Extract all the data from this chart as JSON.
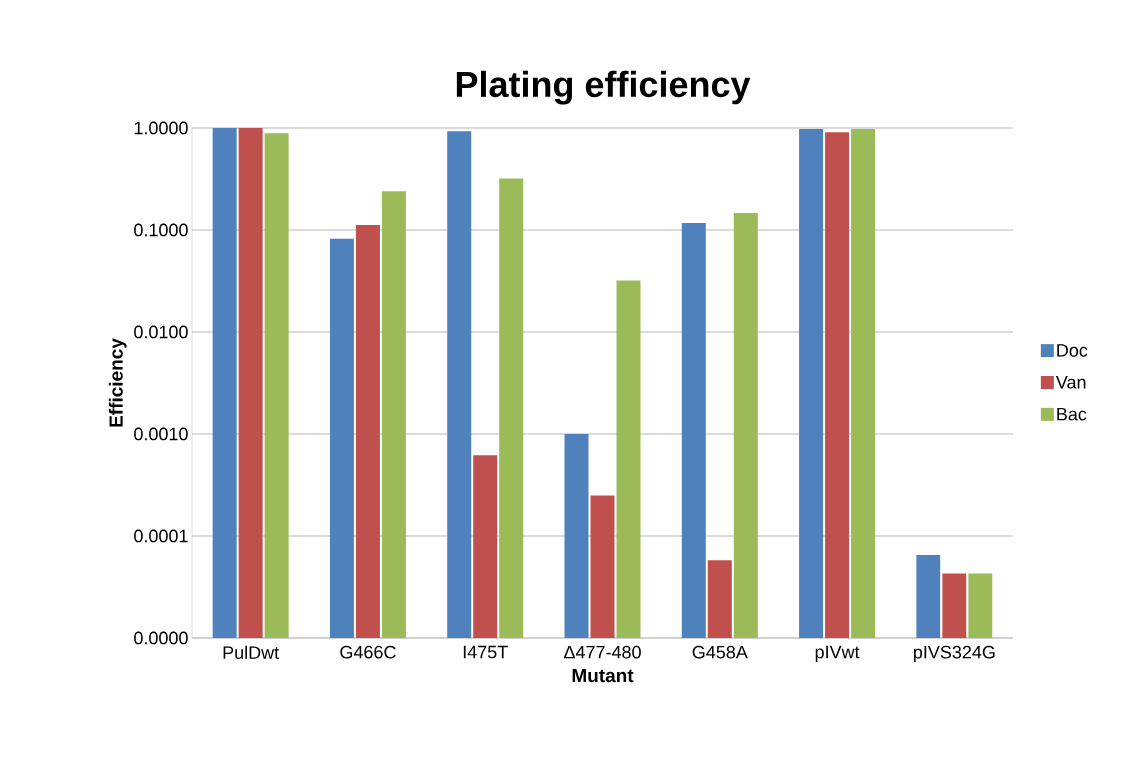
{
  "chart_data": {
    "type": "bar",
    "title": "Plating efficiency",
    "xlabel": "Mutant",
    "ylabel": "Efficiency",
    "categories": [
      "PulDwt",
      "G466C",
      "I475T",
      "Δ477-480",
      "G458A",
      "pIVwt",
      "pIVS324G"
    ],
    "series": [
      {
        "name": "Doc",
        "color": "#4f81bd",
        "values": [
          1.0,
          0.082,
          0.93,
          0.001,
          0.117,
          0.98,
          6.5e-05
        ]
      },
      {
        "name": "Van",
        "color": "#c0504d",
        "values": [
          1.0,
          0.112,
          0.00062,
          0.00025,
          5.8e-05,
          0.91,
          4.3e-05
        ]
      },
      {
        "name": "Bac",
        "color": "#9bbb59",
        "values": [
          0.89,
          0.24,
          0.32,
          0.032,
          0.147,
          0.98,
          4.3e-05
        ]
      }
    ],
    "log": "y",
    "ylim": [
      1e-05,
      1
    ],
    "yticks": [
      {
        "value": 1e-05,
        "label": "0.0000"
      },
      {
        "value": 0.0001,
        "label": "0.0001"
      },
      {
        "value": 0.001,
        "label": "0.0010"
      },
      {
        "value": 0.01,
        "label": "0.0100"
      },
      {
        "value": 0.1,
        "label": "0.1000"
      },
      {
        "value": 1,
        "label": "1.0000"
      }
    ],
    "grid": "y",
    "legend": "right"
  }
}
